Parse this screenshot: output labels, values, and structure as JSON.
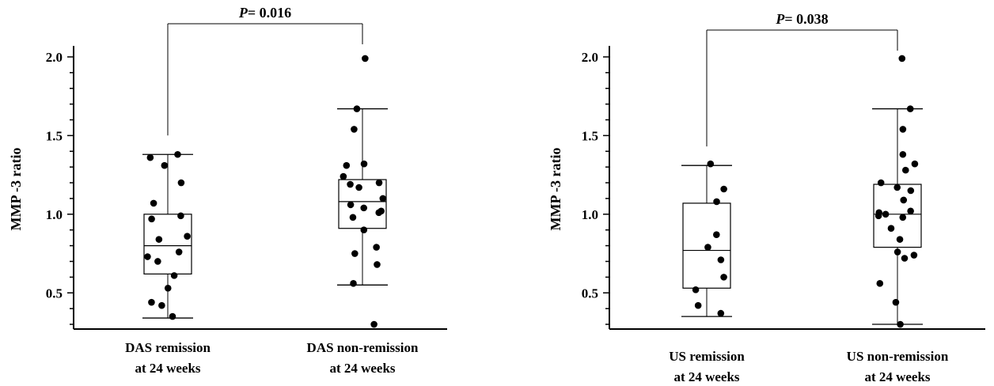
{
  "chart_data": [
    {
      "type": "box",
      "ylabel": "MMP -3 ratio",
      "yticks": [
        "0.5",
        "1.0",
        "1.5",
        "2.0"
      ],
      "ylim": [
        0.27,
        2.05
      ],
      "categories": [
        {
          "line1": "DAS remission",
          "line2": "at 24 weeks",
          "box": {
            "min": 0.34,
            "q1": 0.62,
            "median": 0.8,
            "q3": 1.0,
            "max": 1.38
          },
          "points": [
            1.38,
            1.36,
            1.31,
            1.2,
            1.07,
            0.99,
            0.97,
            0.86,
            0.84,
            0.76,
            0.73,
            0.7,
            0.61,
            0.53,
            0.44,
            0.42,
            0.35
          ]
        },
        {
          "line1": "DAS non-remission",
          "line2": "at 24 weeks",
          "box": {
            "min": 0.55,
            "q1": 0.91,
            "median": 1.08,
            "q3": 1.22,
            "max": 1.67
          },
          "points": [
            1.99,
            1.67,
            1.54,
            1.32,
            1.31,
            1.24,
            1.2,
            1.19,
            1.17,
            1.1,
            1.06,
            1.04,
            1.02,
            1.01,
            0.98,
            0.9,
            0.79,
            0.75,
            0.68,
            0.56,
            0.3
          ]
        }
      ],
      "pvalue": {
        "label": "P",
        "value": "= 0.016"
      }
    },
    {
      "type": "box",
      "ylabel": "MMP -3 ratio",
      "yticks": [
        "0.5",
        "1.0",
        "1.5",
        "2.0"
      ],
      "ylim": [
        0.27,
        2.05
      ],
      "categories": [
        {
          "line1": "US remission",
          "line2": "at 24 weeks",
          "box": {
            "min": 0.35,
            "q1": 0.53,
            "median": 0.77,
            "q3": 1.07,
            "max": 1.31
          },
          "points": [
            1.32,
            1.16,
            1.08,
            0.87,
            0.79,
            0.71,
            0.6,
            0.52,
            0.42,
            0.37
          ]
        },
        {
          "line1": "US non-remission",
          "line2": "at 24 weeks",
          "box": {
            "min": 0.3,
            "q1": 0.79,
            "median": 1.0,
            "q3": 1.19,
            "max": 1.67
          },
          "points": [
            1.99,
            1.67,
            1.54,
            1.38,
            1.32,
            1.28,
            1.2,
            1.17,
            1.15,
            1.09,
            1.02,
            1.01,
            1.0,
            0.99,
            0.98,
            0.91,
            0.84,
            0.76,
            0.74,
            0.72,
            0.56,
            0.44,
            0.3
          ]
        }
      ],
      "pvalue": {
        "label": "P",
        "value": "= 0.038"
      }
    }
  ]
}
